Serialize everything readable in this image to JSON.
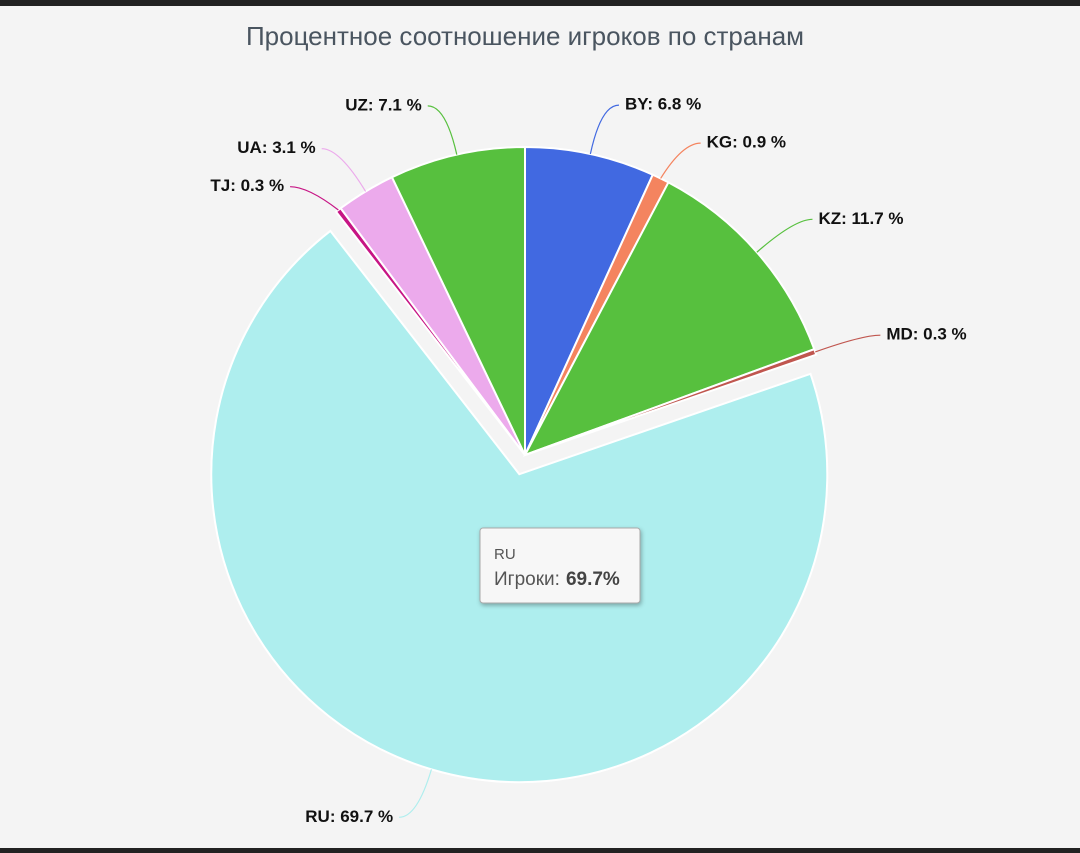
{
  "chart_data": {
    "type": "pie",
    "title": "Процентное соотношение игроков по странам",
    "categories": [
      "BY",
      "KG",
      "KZ",
      "MD",
      "RU",
      "TJ",
      "UA",
      "UZ"
    ],
    "values": [
      6.8,
      0.9,
      11.7,
      0.3,
      69.7,
      0.3,
      3.1,
      7.1
    ],
    "value_labels": [
      "BY: 6.8 %",
      "KG: 0.9 %",
      "KZ: 11.7 %",
      "MD: 0.3 %",
      "RU: 69.7 %",
      "TJ: 0.3 %",
      "UA: 3.1 %",
      "UZ: 7.1 %"
    ],
    "colors": [
      "#4169e1",
      "#f4845f",
      "#57c03e",
      "#c0564f",
      "#aeeeee",
      "#c71585",
      "#ecaaec",
      "#57c03e"
    ],
    "exploded": "RU",
    "tooltip": {
      "title": "RU",
      "label": "Игроки:",
      "value": "69.7%"
    }
  }
}
